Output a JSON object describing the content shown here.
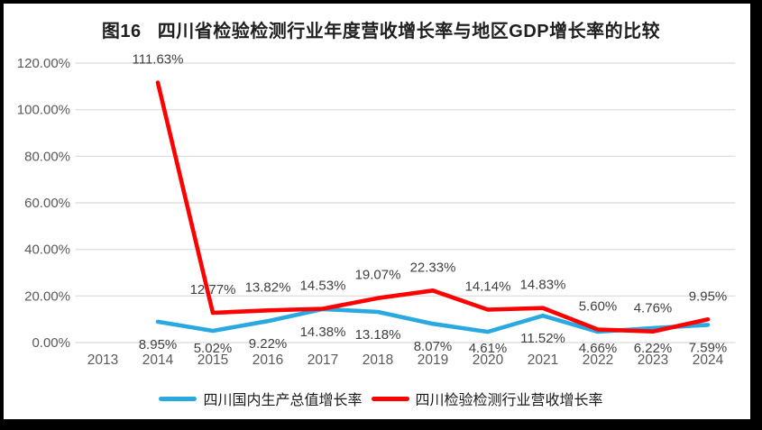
{
  "title_note": "figure title is stored in chart_data.title",
  "colors": {
    "frame": "#000000",
    "paper": "#ffffff",
    "gridline": "#e0e0e0",
    "axis_text": "#595959",
    "data_label": "#3f3f3f",
    "title_text": "#1f1f1f",
    "series_blue": "#29a9e0",
    "series_red": "#fe0000"
  },
  "chart_data": {
    "type": "line",
    "title": "图16   四川省检验检测行业年度营收增长率与地区GDP增长率的比较",
    "categories": [
      "2013",
      "2014",
      "2015",
      "2016",
      "2017",
      "2018",
      "2019",
      "2020",
      "2021",
      "2022",
      "2023",
      "2024"
    ],
    "series": [
      {
        "name": "四川国内生产总值增长率",
        "color": "#29a9e0",
        "label_position": "below",
        "values": [
          null,
          8.95,
          5.02,
          9.22,
          14.38,
          13.18,
          8.07,
          4.61,
          11.52,
          4.66,
          6.22,
          7.59
        ],
        "labels": [
          "",
          "8.95%",
          "5.02%",
          "9.22%",
          "14.38%",
          "13.18%",
          "8.07%",
          "4.61%",
          "11.52%",
          "4.66%",
          "6.22%",
          "7.59%"
        ]
      },
      {
        "name": "四川检验检测行业营收增长率",
        "color": "#fe0000",
        "label_position": "above",
        "values": [
          null,
          111.63,
          12.77,
          13.82,
          14.53,
          19.07,
          22.33,
          14.14,
          14.83,
          5.6,
          4.76,
          9.95
        ],
        "labels": [
          "",
          "111.63%",
          "12.77%",
          "13.82%",
          "14.53%",
          "19.07%",
          "22.33%",
          "14.14%",
          "14.83%",
          "5.60%",
          "4.76%",
          "9.95%"
        ]
      }
    ],
    "ylim": [
      0,
      120
    ],
    "yticks": [
      "0.00%",
      "20.00%",
      "40.00%",
      "60.00%",
      "80.00%",
      "100.00%",
      "120.00%"
    ],
    "xlabel": "",
    "ylabel": "",
    "grid": "horizontal",
    "legend_position": "bottom"
  }
}
